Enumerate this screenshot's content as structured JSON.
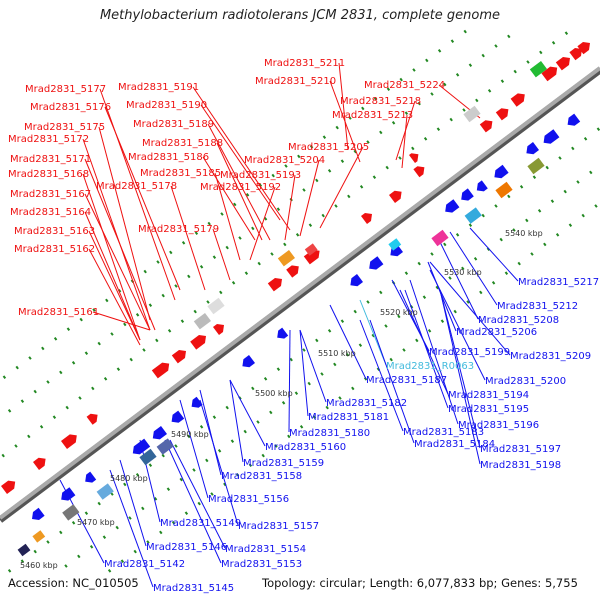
{
  "title": "Methylobacterium radiotolerans JCM 2831, complete genome",
  "footer": {
    "accession": "Accession: NC_010505",
    "topology": "Topology: circular; Length: 6,077,833 bp; Genes: 5,755"
  },
  "colors": {
    "forward": "#ee1111",
    "reverse": "#1111ee",
    "rna": "#22bbee",
    "highlight_label": "#44bbdd",
    "backbone": "#888888",
    "tick_dots": "#228822"
  },
  "scale_labels": [
    "5460 kbp",
    "5470 kbp",
    "5480 kbp",
    "5490 kbp",
    "5500 kbp",
    "5510 kbp",
    "5520 kbp",
    "5530 kbp",
    "5540 kbp"
  ],
  "top_labels": [
    "Mrad2831_5211",
    "Mrad2831_5210",
    "Mrad2831_5224",
    "Mrad2831_5218",
    "Mrad2831_5213",
    "Mrad2831_5177",
    "Mrad2831_5191",
    "Mrad2831_5176",
    "Mrad2831_5190",
    "Mrad2831_5175",
    "Mrad2831_5189",
    "Mrad2831_5172",
    "Mrad2831_5188",
    "Mrad2831_5205",
    "Mrad2831_5186",
    "Mrad2831_5204",
    "Mrad2831_5171",
    "Mrad2831_5185",
    "Mrad2831_5193",
    "Mrad2831_5168",
    "Mrad2831_5178",
    "Mrad2831_5192",
    "Mrad2831_5167",
    "Mrad2831_5164",
    "Mrad2831_5179",
    "Mrad2831_5163",
    "Mrad2831_5162",
    "Mrad2831_5161"
  ],
  "bottom_labels": [
    "Mrad2831_5217",
    "Mrad2831_5212",
    "Mrad2831_5208",
    "Mrad2831_5206",
    "Mrad2831_5209",
    "Mrad2831_5199",
    "Mrad2831_R0063",
    "Mrad2831_5187",
    "Mrad2831_5200",
    "Mrad2831_5194",
    "Mrad2831_5182",
    "Mrad2831_5195",
    "Mrad2831_5181",
    "Mrad2831_5196",
    "Mrad2831_5180",
    "Mrad2831_5183",
    "Mrad2831_5184",
    "Mrad2831_5160",
    "Mrad2831_5197",
    "Mrad2831_5159",
    "Mrad2831_5198",
    "Mrad2831_5158",
    "Mrad2831_5156",
    "Mrad2831_5149",
    "Mrad2831_5157",
    "Mrad2831_5146",
    "Mrad2831_5154",
    "Mrad2831_5142",
    "Mrad2831_5153",
    "Mrad2831_5145"
  ]
}
